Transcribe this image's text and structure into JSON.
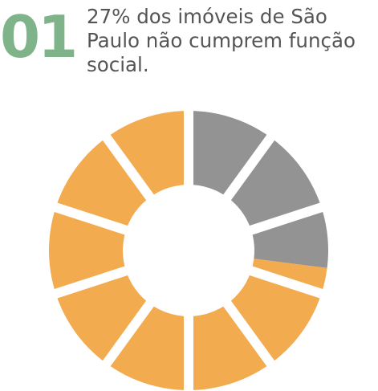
{
  "number_label": "01",
  "headline": "27% dos imóveis de São Paulo não cumprem função social.",
  "colors": {
    "number": "#7fb38a",
    "text": "#555555",
    "highlight": "#939393",
    "base": "#f2ab4f"
  },
  "chart_data": {
    "type": "pie",
    "style": "donut",
    "segments": 10,
    "percent_highlighted": 27,
    "series": [
      {
        "value": 27,
        "color": "#939393"
      },
      {
        "value": 73,
        "color": "#f2ab4f"
      }
    ]
  }
}
